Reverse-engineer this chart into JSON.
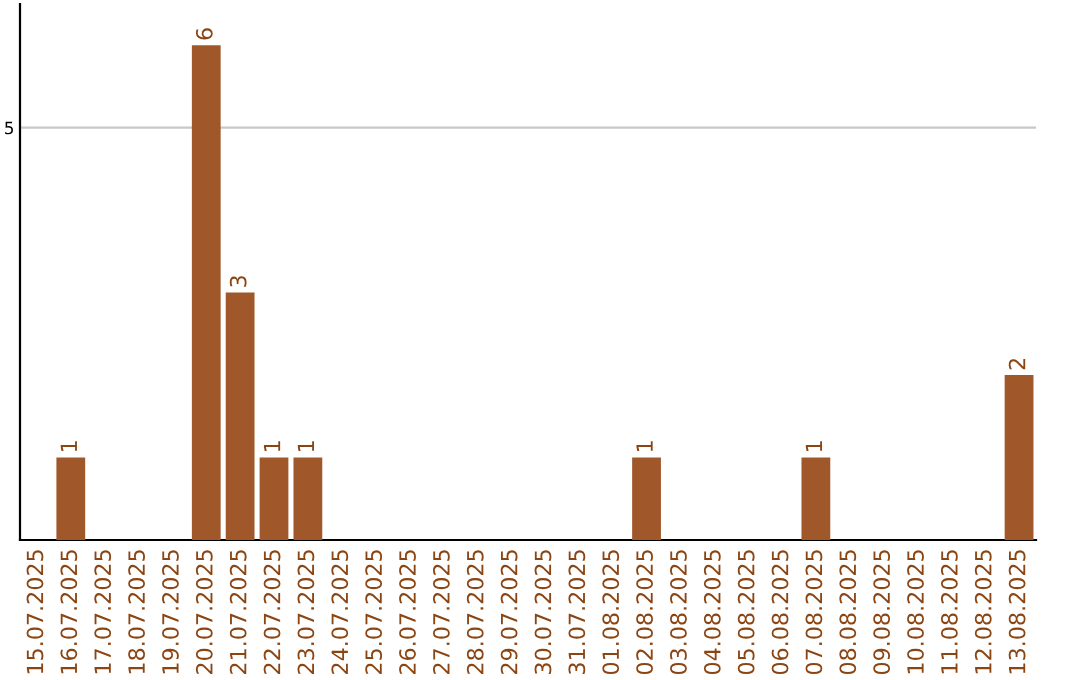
{
  "chart_data": {
    "type": "bar",
    "categories": [
      "15.07.2025",
      "16.07.2025",
      "17.07.2025",
      "18.07.2025",
      "19.07.2025",
      "20.07.2025",
      "21.07.2025",
      "22.07.2025",
      "23.07.2025",
      "24.07.2025",
      "25.07.2025",
      "26.07.2025",
      "27.07.2025",
      "28.07.2025",
      "29.07.2025",
      "30.07.2025",
      "31.07.2025",
      "01.08.2025",
      "02.08.2025",
      "03.08.2025",
      "04.08.2025",
      "05.08.2025",
      "06.08.2025",
      "07.08.2025",
      "08.08.2025",
      "09.08.2025",
      "10.08.2025",
      "11.08.2025",
      "12.08.2025",
      "13.08.2025"
    ],
    "values": [
      0,
      1,
      0,
      0,
      0,
      6,
      3,
      1,
      1,
      0,
      0,
      0,
      0,
      0,
      0,
      0,
      0,
      0,
      1,
      0,
      0,
      0,
      0,
      1,
      0,
      0,
      0,
      0,
      0,
      2
    ],
    "value_labels": [
      null,
      "1",
      null,
      null,
      null,
      "6",
      "3",
      "1",
      "1",
      null,
      null,
      null,
      null,
      null,
      null,
      null,
      null,
      null,
      "1",
      null,
      null,
      null,
      null,
      "1",
      null,
      null,
      null,
      null,
      null,
      "2"
    ],
    "color": "#a0572a",
    "ylim": [
      0,
      6.5
    ],
    "yticks": [
      5
    ],
    "grid": "y"
  }
}
